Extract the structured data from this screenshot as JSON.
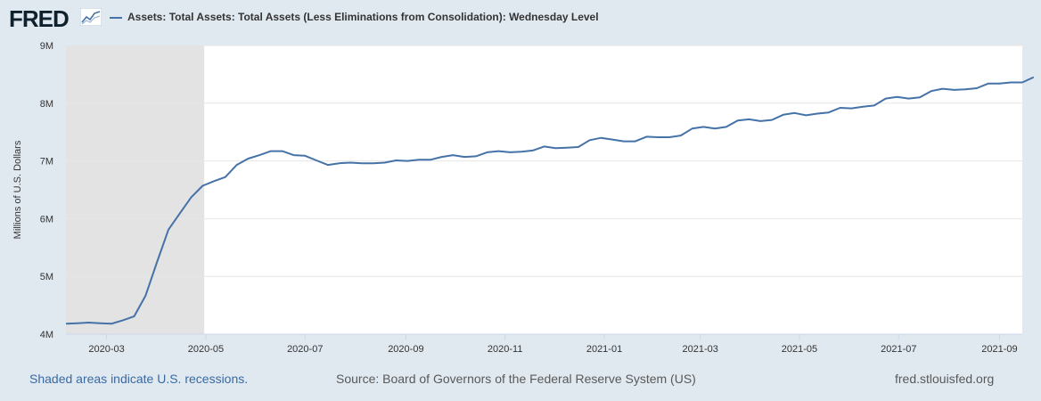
{
  "header": {
    "logo_text": "FRED",
    "logo_icon": "line-chart-icon",
    "series_title": "Assets: Total Assets: Total Assets (Less Eliminations from Consolidation): Wednesday Level"
  },
  "footer": {
    "recession_note": "Shaded areas indicate U.S. recessions.",
    "source": "Source: Board of Governors of the Federal Reserve System (US)",
    "site": "fred.stlouisfed.org"
  },
  "colors": {
    "line": "#4572a7",
    "recession": "#e3e3e3",
    "background": "#e1e9f0",
    "plot": "#ffffff",
    "grid": "#e6e6e6"
  },
  "chart_data": {
    "type": "line",
    "title": "Assets: Total Assets: Total Assets (Less Eliminations from Consolidation): Wednesday Level",
    "xlabel": "",
    "ylabel": "Millions of U.S. Dollars",
    "ylim": [
      4,
      9
    ],
    "y_ticks": [
      4,
      5,
      6,
      7,
      8,
      9
    ],
    "y_tick_labels": [
      "4M",
      "5M",
      "6M",
      "7M",
      "8M",
      "9M"
    ],
    "x_range": [
      "2020-02-05",
      "2021-09-15"
    ],
    "x_ticks": [
      "2020-03",
      "2020-05",
      "2020-07",
      "2020-09",
      "2020-11",
      "2021-01",
      "2021-03",
      "2021-05",
      "2021-07",
      "2021-09"
    ],
    "x_tick_dates": [
      "2020-03-01",
      "2020-05-01",
      "2020-07-01",
      "2020-09-01",
      "2020-11-01",
      "2021-01-01",
      "2021-03-01",
      "2021-05-01",
      "2021-07-01",
      "2021-09-01"
    ],
    "recession": {
      "start": "2020-02-05",
      "end": "2020-04-30"
    },
    "grid": true,
    "series": [
      {
        "name": "Assets: Total Assets: Total Assets (Less Eliminations from Consolidation): Wednesday Level",
        "start_date": "2020-02-05",
        "interval_days": 7,
        "values": [
          4.18,
          4.19,
          4.2,
          4.19,
          4.18,
          4.24,
          4.31,
          4.67,
          5.25,
          5.81,
          6.09,
          6.37,
          6.57,
          6.65,
          6.72,
          6.93,
          7.04,
          7.1,
          7.17,
          7.17,
          7.1,
          7.09,
          7.01,
          6.93,
          6.96,
          6.97,
          6.96,
          6.96,
          6.97,
          7.01,
          7.0,
          7.02,
          7.02,
          7.07,
          7.1,
          7.07,
          7.08,
          7.15,
          7.17,
          7.15,
          7.16,
          7.18,
          7.25,
          7.22,
          7.23,
          7.24,
          7.36,
          7.4,
          7.37,
          7.34,
          7.34,
          7.42,
          7.41,
          7.41,
          7.44,
          7.56,
          7.59,
          7.56,
          7.59,
          7.7,
          7.72,
          7.69,
          7.71,
          7.8,
          7.83,
          7.79,
          7.82,
          7.84,
          7.92,
          7.91,
          7.94,
          7.96,
          8.08,
          8.11,
          8.08,
          8.1,
          8.21,
          8.25,
          8.23,
          8.24,
          8.26,
          8.34,
          8.34,
          8.36,
          8.36,
          8.45
        ]
      }
    ]
  }
}
